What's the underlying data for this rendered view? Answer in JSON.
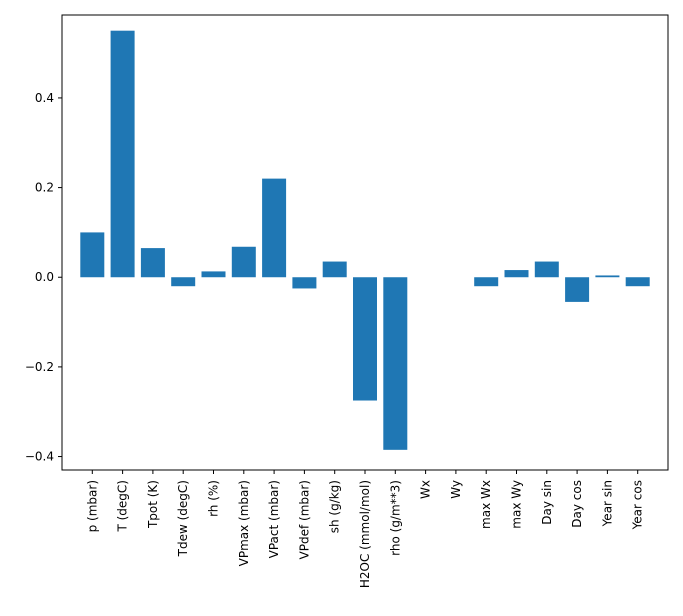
{
  "chart_data": {
    "type": "bar",
    "title": "",
    "xlabel": "",
    "ylabel": "",
    "categories": [
      "p (mbar)",
      "T (degC)",
      "Tpot (K)",
      "Tdew (degC)",
      "rh (%)",
      "VPmax (mbar)",
      "VPact (mbar)",
      "VPdef (mbar)",
      "sh (g/kg)",
      "H2OC (mmol/mol)",
      "rho (g/m**3)",
      "Wx",
      "Wy",
      "max Wx",
      "max Wy",
      "Day sin",
      "Day cos",
      "Year sin",
      "Year cos"
    ],
    "values": [
      0.1,
      0.55,
      0.065,
      -0.02,
      0.013,
      0.068,
      0.22,
      -0.025,
      0.035,
      -0.275,
      -0.385,
      0.0,
      0.0,
      -0.02,
      0.016,
      0.035,
      -0.055,
      0.004,
      -0.02
    ],
    "ylim": [
      -0.43,
      0.585
    ],
    "yticks": [
      -0.4,
      -0.2,
      0.0,
      0.2,
      0.4
    ],
    "ytick_labels": [
      "−0.4",
      "−0.2",
      "0.0",
      "0.2",
      "0.4"
    ],
    "bar_color": "#1f77b4",
    "background": "#ffffff",
    "spine_color": "#000000",
    "grid": false,
    "legend_position": "none",
    "xtick_rotation_deg": 90
  }
}
